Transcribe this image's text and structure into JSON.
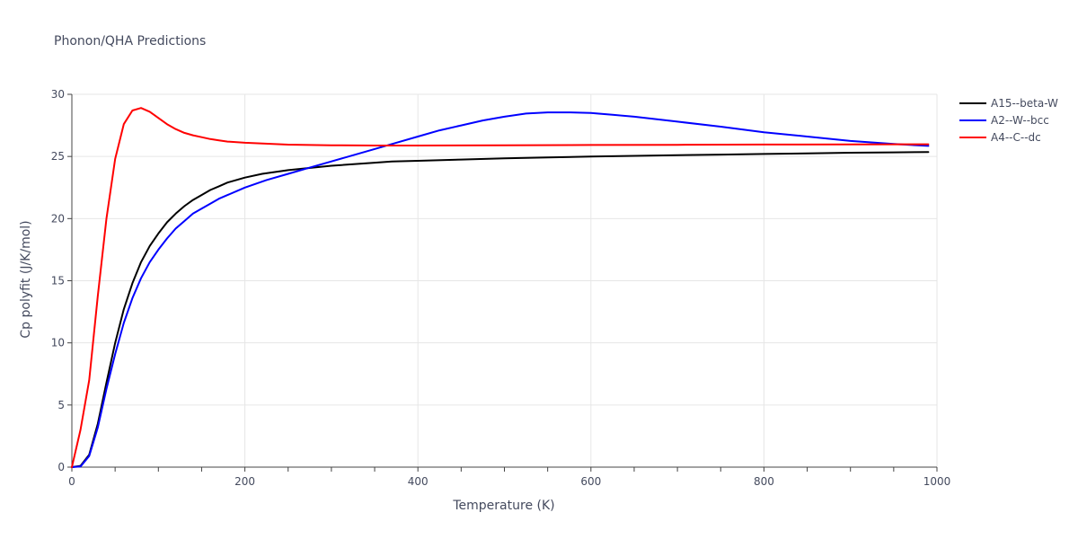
{
  "chart_data": {
    "type": "line",
    "title": "Phonon/QHA Predictions",
    "xlabel": "Temperature (K)",
    "ylabel": "Cp polyfit (J/K/mol)",
    "xlim": [
      0,
      1000
    ],
    "ylim": [
      0,
      30
    ],
    "xticks": [
      0,
      200,
      400,
      600,
      800,
      1000
    ],
    "yticks": [
      0,
      5,
      10,
      15,
      20,
      25,
      30
    ],
    "grid": true,
    "legend_position": "top-right",
    "series": [
      {
        "name": "A15--beta-W",
        "color": "#000000",
        "points": [
          [
            0,
            0
          ],
          [
            10,
            0.1
          ],
          [
            20,
            1.0
          ],
          [
            30,
            3.5
          ],
          [
            40,
            6.8
          ],
          [
            50,
            10.0
          ],
          [
            60,
            12.7
          ],
          [
            70,
            14.8
          ],
          [
            80,
            16.5
          ],
          [
            90,
            17.8
          ],
          [
            100,
            18.8
          ],
          [
            110,
            19.7
          ],
          [
            120,
            20.4
          ],
          [
            130,
            21.0
          ],
          [
            140,
            21.5
          ],
          [
            150,
            21.9
          ],
          [
            160,
            22.3
          ],
          [
            170,
            22.6
          ],
          [
            180,
            22.9
          ],
          [
            190,
            23.1
          ],
          [
            200,
            23.3
          ],
          [
            220,
            23.6
          ],
          [
            250,
            23.9
          ],
          [
            300,
            24.25
          ],
          [
            350,
            24.5
          ],
          [
            370,
            24.6
          ],
          [
            400,
            24.65
          ],
          [
            450,
            24.75
          ],
          [
            500,
            24.85
          ],
          [
            550,
            24.92
          ],
          [
            600,
            25.0
          ],
          [
            650,
            25.05
          ],
          [
            700,
            25.1
          ],
          [
            750,
            25.15
          ],
          [
            800,
            25.2
          ],
          [
            850,
            25.25
          ],
          [
            900,
            25.3
          ],
          [
            950,
            25.33
          ],
          [
            990,
            25.35
          ]
        ]
      },
      {
        "name": "A2--W--bcc",
        "color": "#0000ff",
        "points": [
          [
            0,
            0
          ],
          [
            10,
            0.05
          ],
          [
            20,
            0.9
          ],
          [
            30,
            3.2
          ],
          [
            40,
            6.3
          ],
          [
            50,
            9.1
          ],
          [
            60,
            11.6
          ],
          [
            70,
            13.6
          ],
          [
            80,
            15.2
          ],
          [
            90,
            16.5
          ],
          [
            100,
            17.5
          ],
          [
            110,
            18.4
          ],
          [
            120,
            19.2
          ],
          [
            130,
            19.8
          ],
          [
            140,
            20.4
          ],
          [
            150,
            20.8
          ],
          [
            160,
            21.2
          ],
          [
            170,
            21.6
          ],
          [
            180,
            21.9
          ],
          [
            200,
            22.5
          ],
          [
            225,
            23.1
          ],
          [
            250,
            23.6
          ],
          [
            275,
            24.1
          ],
          [
            300,
            24.6
          ],
          [
            325,
            25.1
          ],
          [
            350,
            25.6
          ],
          [
            375,
            26.1
          ],
          [
            400,
            26.6
          ],
          [
            425,
            27.1
          ],
          [
            450,
            27.5
          ],
          [
            475,
            27.9
          ],
          [
            500,
            28.2
          ],
          [
            525,
            28.45
          ],
          [
            550,
            28.55
          ],
          [
            575,
            28.55
          ],
          [
            600,
            28.5
          ],
          [
            625,
            28.35
          ],
          [
            650,
            28.2
          ],
          [
            700,
            27.8
          ],
          [
            750,
            27.4
          ],
          [
            800,
            26.95
          ],
          [
            850,
            26.6
          ],
          [
            900,
            26.25
          ],
          [
            950,
            26.0
          ],
          [
            990,
            25.85
          ]
        ]
      },
      {
        "name": "A4--C--dc",
        "color": "#ff0000",
        "points": [
          [
            0,
            0
          ],
          [
            10,
            3.0
          ],
          [
            20,
            7.0
          ],
          [
            30,
            13.8
          ],
          [
            40,
            20.0
          ],
          [
            50,
            24.8
          ],
          [
            60,
            27.6
          ],
          [
            70,
            28.7
          ],
          [
            80,
            28.9
          ],
          [
            90,
            28.6
          ],
          [
            100,
            28.1
          ],
          [
            110,
            27.6
          ],
          [
            120,
            27.2
          ],
          [
            130,
            26.9
          ],
          [
            140,
            26.7
          ],
          [
            150,
            26.55
          ],
          [
            160,
            26.4
          ],
          [
            170,
            26.3
          ],
          [
            180,
            26.2
          ],
          [
            200,
            26.1
          ],
          [
            250,
            25.95
          ],
          [
            300,
            25.9
          ],
          [
            350,
            25.88
          ],
          [
            400,
            25.88
          ],
          [
            500,
            25.9
          ],
          [
            600,
            25.92
          ],
          [
            700,
            25.94
          ],
          [
            800,
            25.96
          ],
          [
            900,
            25.97
          ],
          [
            990,
            25.98
          ]
        ]
      }
    ]
  }
}
